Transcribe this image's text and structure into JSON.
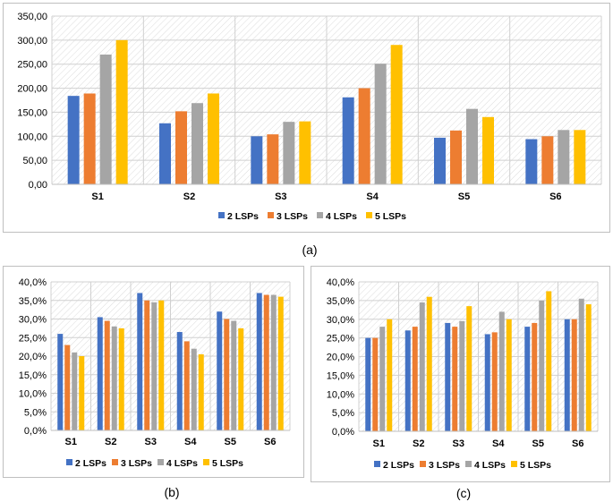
{
  "chart_data": [
    {
      "id": "a",
      "type": "bar",
      "categories": [
        "S1",
        "S2",
        "S3",
        "S4",
        "S5",
        "S6"
      ],
      "series": [
        {
          "name": "2 LSPs",
          "color": "#4472c4",
          "values": [
            184,
            127,
            100,
            181,
            97,
            94
          ]
        },
        {
          "name": "3 LSPs",
          "color": "#ed7d31",
          "values": [
            189,
            152,
            104,
            200,
            112,
            100
          ]
        },
        {
          "name": "4 LSPs",
          "color": "#a5a5a5",
          "values": [
            270,
            169,
            130,
            251,
            157,
            113
          ]
        },
        {
          "name": "5 LSPs",
          "color": "#ffc000",
          "values": [
            300,
            189,
            131,
            290,
            140,
            113
          ]
        }
      ],
      "ylim": [
        0,
        350
      ],
      "yticks": [
        "0,00",
        "50,00",
        "100,00",
        "150,00",
        "200,00",
        "250,00",
        "300,00",
        "350,00"
      ],
      "title": "",
      "xlabel": "",
      "ylabel": "",
      "legend": "bottom",
      "grid": true
    },
    {
      "id": "b",
      "type": "bar",
      "categories": [
        "S1",
        "S2",
        "S3",
        "S4",
        "S5",
        "S6"
      ],
      "series": [
        {
          "name": "2 LSPs",
          "color": "#4472c4",
          "values": [
            26,
            30.5,
            37,
            26.5,
            32,
            37
          ]
        },
        {
          "name": "3 LSPs",
          "color": "#ed7d31",
          "values": [
            23,
            29.5,
            35,
            24,
            30,
            36.5
          ]
        },
        {
          "name": "4 LSPs",
          "color": "#a5a5a5",
          "values": [
            21,
            28,
            34.5,
            22,
            29.5,
            36.5
          ]
        },
        {
          "name": "5 LSPs",
          "color": "#ffc000",
          "values": [
            20,
            27.5,
            35,
            20.5,
            27.5,
            36
          ]
        }
      ],
      "ylim": [
        0,
        40
      ],
      "yticks": [
        "0,0%",
        "5,0%",
        "10,0%",
        "15,0%",
        "20,0%",
        "25,0%",
        "30,0%",
        "35,0%",
        "40,0%"
      ],
      "title": "",
      "xlabel": "",
      "ylabel": "",
      "legend": "bottom",
      "grid": true
    },
    {
      "id": "c",
      "type": "bar",
      "categories": [
        "S1",
        "S2",
        "S3",
        "S4",
        "S5",
        "S6"
      ],
      "series": [
        {
          "name": "2 LSPs",
          "color": "#4472c4",
          "values": [
            25,
            27,
            29,
            26,
            28,
            30
          ]
        },
        {
          "name": "3 LSPs",
          "color": "#ed7d31",
          "values": [
            25,
            28,
            28,
            26.5,
            29,
            30
          ]
        },
        {
          "name": "4 LSPs",
          "color": "#a5a5a5",
          "values": [
            28,
            34.5,
            29.5,
            32,
            35,
            35.5
          ]
        },
        {
          "name": "5 LSPs",
          "color": "#ffc000",
          "values": [
            30,
            36,
            33.5,
            30,
            37.5,
            34
          ]
        }
      ],
      "ylim": [
        0,
        40
      ],
      "yticks": [
        "0,0%",
        "5,0%",
        "10,0%",
        "15,0%",
        "20,0%",
        "25,0%",
        "30,0%",
        "35,0%",
        "40,0%"
      ],
      "title": "",
      "xlabel": "",
      "ylabel": "",
      "legend": "bottom",
      "grid": true
    }
  ],
  "captions": {
    "a": "(a)",
    "b": "(b)",
    "c": "(c)"
  }
}
